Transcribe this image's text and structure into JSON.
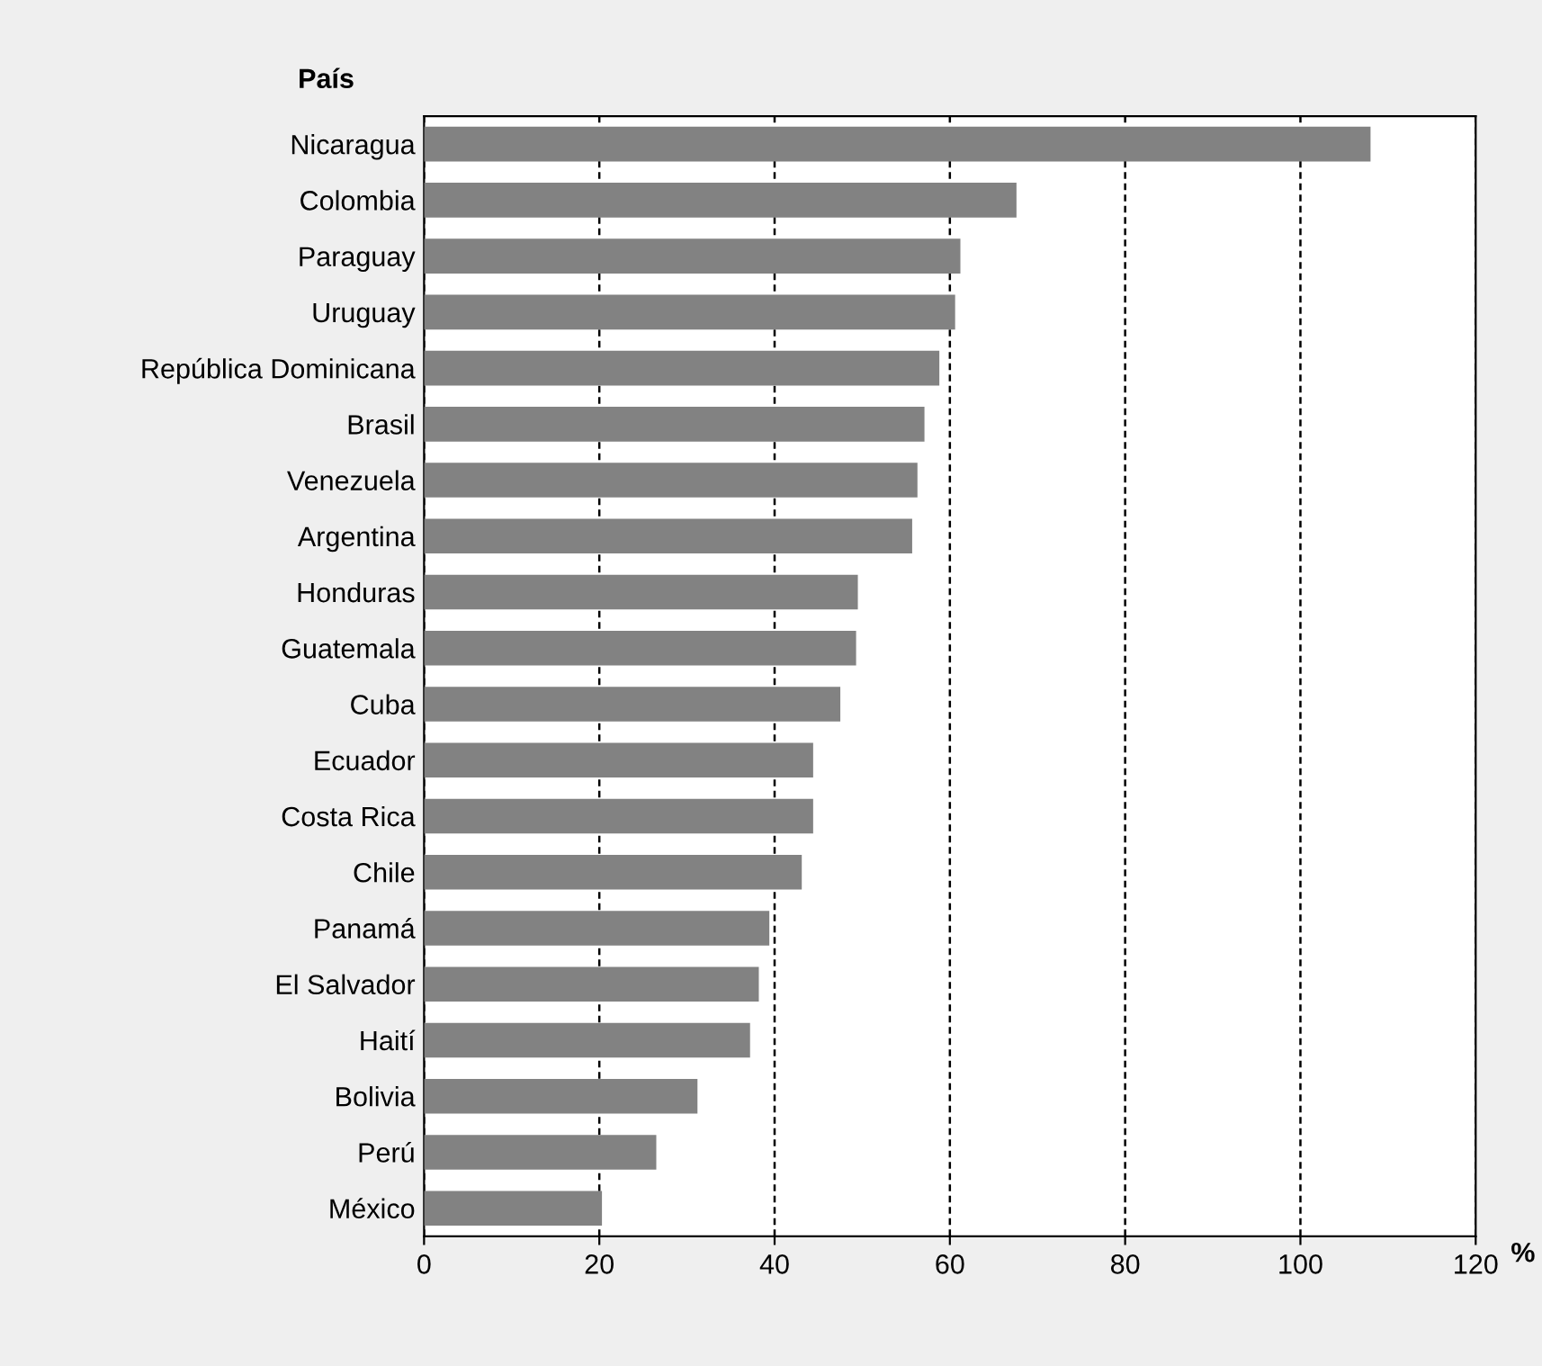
{
  "chart_data": {
    "type": "bar",
    "orientation": "horizontal",
    "ylabel": "País",
    "xlabel": "%",
    "categories": [
      "Nicaragua",
      "Colombia",
      "Paraguay",
      "Uruguay",
      "República Dominicana",
      "Brasil",
      "Venezuela",
      "Argentina",
      "Honduras",
      "Guatemala",
      "Cuba",
      "Ecuador",
      "Costa Rica",
      "Chile",
      "Panamá",
      "El Salvador",
      "Haití",
      "Bolivia",
      "Perú",
      "México"
    ],
    "values": [
      108,
      67.6,
      61.2,
      60.6,
      58.8,
      57.1,
      56.3,
      55.7,
      49.5,
      49.3,
      47.5,
      44.4,
      44.4,
      43.1,
      39.4,
      38.2,
      37.2,
      31.2,
      26.5,
      20.3
    ],
    "color": "#828282",
    "xlim": [
      0,
      120
    ],
    "xticks": [
      0,
      20,
      40,
      60,
      80,
      100,
      120
    ],
    "grid": "x",
    "line_style": "dashed"
  }
}
